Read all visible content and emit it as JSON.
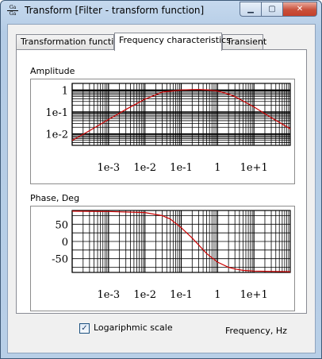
{
  "window": {
    "title": "Transform [Filter - transform function]",
    "icon_text": "Ga",
    "minimize_icon": "minimize-icon",
    "maximize_icon": "maximize-icon",
    "close_icon": "close-icon"
  },
  "tabs": [
    {
      "label": "Transformation function",
      "active": false
    },
    {
      "label": "Frequency characteristics",
      "active": true
    },
    {
      "label": "Transient",
      "active": false
    }
  ],
  "amplitude": {
    "label": "Amplitude"
  },
  "phase": {
    "label": "Phase, Deg"
  },
  "chart_data": [
    {
      "type": "line",
      "title": "Amplitude",
      "xscale": "log",
      "yscale": "log",
      "xlim": [
        0.0001,
        100
      ],
      "ylim": [
        0.003,
        2
      ],
      "xticks": [
        "1e-3",
        "1e-2",
        "1e-1",
        "1",
        "1e+1"
      ],
      "yticks": [
        "1",
        "1e-1",
        "1e-2"
      ],
      "grid": true,
      "x": [
        0.0001,
        0.0003,
        0.001,
        0.003,
        0.01,
        0.03,
        0.1,
        0.2,
        0.3,
        0.5,
        1,
        2,
        3,
        10,
        30,
        100
      ],
      "y": [
        0.005,
        0.014,
        0.045,
        0.13,
        0.38,
        0.8,
        1.0,
        1.04,
        1.05,
        1.02,
        0.9,
        0.65,
        0.5,
        0.17,
        0.055,
        0.017
      ]
    },
    {
      "type": "line",
      "title": "Phase, Deg",
      "xscale": "log",
      "xlim": [
        0.0001,
        100
      ],
      "ylim": [
        -90,
        90
      ],
      "xticks": [
        "1e-3",
        "1e-2",
        "1e-1",
        "1",
        "1e+1"
      ],
      "yticks": [
        "50",
        "0",
        "-50"
      ],
      "grid": true,
      "x": [
        0.0001,
        0.001,
        0.01,
        0.03,
        0.05,
        0.1,
        0.2,
        0.3,
        0.5,
        1,
        2,
        3,
        5,
        10,
        30,
        100
      ],
      "y": [
        88,
        87,
        84,
        75,
        65,
        40,
        10,
        -10,
        -35,
        -60,
        -75,
        -80,
        -84,
        -86,
        -87,
        -88
      ]
    }
  ],
  "options": {
    "log_scale_label": "Logariphmic scale",
    "log_scale_checked": true,
    "check_glyph": "✓"
  },
  "axis": {
    "frequency_label": "Frequency, Hz"
  }
}
